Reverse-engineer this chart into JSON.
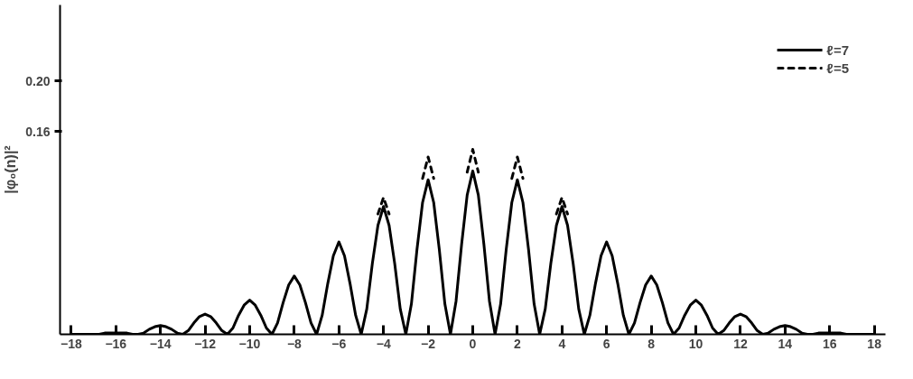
{
  "chart_data": {
    "type": "line",
    "ylabel": "|φ₀(n)|²",
    "xlim": [
      -18.5,
      18.5
    ],
    "xticks": [
      -18,
      -16,
      -14,
      -12,
      -10,
      -8,
      -6,
      -4,
      -2,
      0,
      2,
      4,
      6,
      8,
      10,
      12,
      14,
      16,
      18
    ],
    "ylim": [
      0,
      0.26
    ],
    "yticks": [
      0.16,
      {
        "value": 0.2,
        "label": "0.20"
      }
    ],
    "grid": false,
    "legend": "top right",
    "marker": "none",
    "series": [
      {
        "name": "ℓ=7",
        "color": "#000000",
        "line_style": "solid",
        "x": [
          -18,
          -17.75,
          -17.5,
          -17.25,
          -17,
          -16.75,
          -16.5,
          -16.25,
          -16,
          -15.75,
          -15.5,
          -15.25,
          -15,
          -14.75,
          -14.5,
          -14.25,
          -14,
          -13.75,
          -13.5,
          -13.25,
          -13,
          -12.75,
          -12.5,
          -12.25,
          -12,
          -11.75,
          -11.5,
          -11.25,
          -11,
          -10.75,
          -10.5,
          -10.25,
          -10,
          -9.75,
          -9.5,
          -9.25,
          -9,
          -8.75,
          -8.5,
          -8.25,
          -8,
          -7.75,
          -7.5,
          -7.25,
          -7,
          -6.75,
          -6.5,
          -6.25,
          -6,
          -5.75,
          -5.5,
          -5.25,
          -5,
          -4.75,
          -4.5,
          -4.25,
          -4,
          -3.75,
          -3.5,
          -3.25,
          -3,
          -2.75,
          -2.5,
          -2.25,
          -2,
          -1.75,
          -1.5,
          -1.25,
          -1,
          -0.75,
          -0.5,
          -0.25,
          0,
          0.25,
          0.5,
          0.75,
          1,
          1.25,
          1.5,
          1.75,
          2,
          2.25,
          2.5,
          2.75,
          3,
          3.25,
          3.5,
          3.75,
          4,
          4.25,
          4.5,
          4.75,
          5,
          5.25,
          5.5,
          5.75,
          6,
          6.25,
          6.5,
          6.75,
          7,
          7.25,
          7.5,
          7.75,
          8,
          8.25,
          8.5,
          8.75,
          9,
          9.25,
          9.5,
          9.75,
          10,
          10.25,
          10.5,
          10.75,
          11,
          11.25,
          11.5,
          11.75,
          12,
          12.25,
          12.5,
          12.75,
          13,
          13.25,
          13.5,
          13.75,
          14,
          14.25,
          14.5,
          14.75,
          15,
          15.25,
          15.5,
          15.75,
          16,
          16.25,
          16.5,
          16.75,
          17,
          17.25,
          17.5,
          17.75,
          18
        ],
        "values": [
          0,
          0,
          0,
          0,
          0,
          0,
          0.001,
          0.001,
          0.001,
          0.001,
          0.001,
          0,
          0,
          0.001,
          0.004,
          0.006,
          0.007,
          0.006,
          0.004,
          0.001,
          0,
          0.003,
          0.009,
          0.014,
          0.016,
          0.014,
          0.009,
          0.003,
          0,
          0.005,
          0.015,
          0.023,
          0.027,
          0.023,
          0.015,
          0.005,
          0,
          0.009,
          0.025,
          0.039,
          0.046,
          0.039,
          0.025,
          0.009,
          0,
          0.015,
          0.04,
          0.062,
          0.073,
          0.062,
          0.04,
          0.015,
          0,
          0.02,
          0.056,
          0.086,
          0.101,
          0.086,
          0.056,
          0.02,
          0,
          0.024,
          0.067,
          0.104,
          0.122,
          0.104,
          0.067,
          0.024,
          0,
          0.026,
          0.071,
          0.11,
          0.129,
          0.11,
          0.071,
          0.026,
          0,
          0.024,
          0.067,
          0.104,
          0.122,
          0.104,
          0.067,
          0.024,
          0,
          0.02,
          0.056,
          0.086,
          0.101,
          0.086,
          0.056,
          0.02,
          0,
          0.015,
          0.04,
          0.062,
          0.073,
          0.062,
          0.04,
          0.015,
          0,
          0.009,
          0.025,
          0.039,
          0.046,
          0.039,
          0.025,
          0.009,
          0,
          0.005,
          0.015,
          0.023,
          0.027,
          0.023,
          0.015,
          0.005,
          0,
          0.003,
          0.009,
          0.014,
          0.016,
          0.014,
          0.009,
          0.003,
          0,
          0.001,
          0.004,
          0.006,
          0.007,
          0.006,
          0.004,
          0.001,
          0,
          0,
          0.001,
          0.001,
          0.001,
          0.001,
          0.001,
          0,
          0,
          0,
          0,
          0,
          0
        ]
      },
      {
        "name": "ℓ=5",
        "color": "#000000",
        "line_style": "dashed",
        "x": [
          -4.25,
          -4,
          -3.75,
          -3,
          -2.25,
          -2,
          -1.75,
          -1,
          -0.25,
          0,
          0.25,
          1,
          1.75,
          2,
          2.25,
          3,
          3.75,
          4,
          4.25
        ],
        "values": [
          0.095,
          0.108,
          0.095,
          null,
          0.123,
          0.14,
          0.123,
          null,
          0.128,
          0.146,
          0.128,
          null,
          0.123,
          0.14,
          0.123,
          null,
          0.095,
          0.108,
          0.095
        ]
      }
    ]
  }
}
